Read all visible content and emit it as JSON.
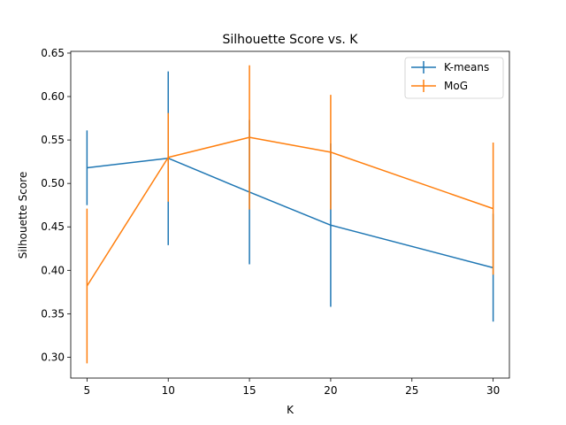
{
  "chart_data": {
    "type": "line",
    "title": "Silhouette Score vs. K",
    "xlabel": "K",
    "ylabel": "Silhouette Score",
    "x": [
      5,
      10,
      15,
      20,
      30
    ],
    "xlim": [
      4,
      31
    ],
    "ylim": [
      0.276,
      0.652
    ],
    "xticks": [
      5,
      10,
      15,
      20,
      25,
      30
    ],
    "xtick_labels": [
      "5",
      "10",
      "15",
      "20",
      "25",
      "30"
    ],
    "yticks": [
      0.3,
      0.35,
      0.4,
      0.45,
      0.5,
      0.55,
      0.6,
      0.65
    ],
    "ytick_labels": [
      "0.30",
      "0.35",
      "0.40",
      "0.45",
      "0.50",
      "0.55",
      "0.60",
      "0.65"
    ],
    "grid": false,
    "legend_position": "top-right",
    "error_bars": true,
    "series": [
      {
        "name": "K-means",
        "color": "#1f77b4",
        "values": [
          0.518,
          0.529,
          0.49,
          0.452,
          0.403
        ],
        "errors": [
          0.043,
          0.1,
          0.083,
          0.094,
          0.062
        ]
      },
      {
        "name": "MoG",
        "color": "#ff7f0e",
        "values": [
          0.382,
          0.53,
          0.553,
          0.536,
          0.471
        ],
        "errors": [
          0.089,
          0.051,
          0.083,
          0.066,
          0.076
        ]
      }
    ]
  }
}
